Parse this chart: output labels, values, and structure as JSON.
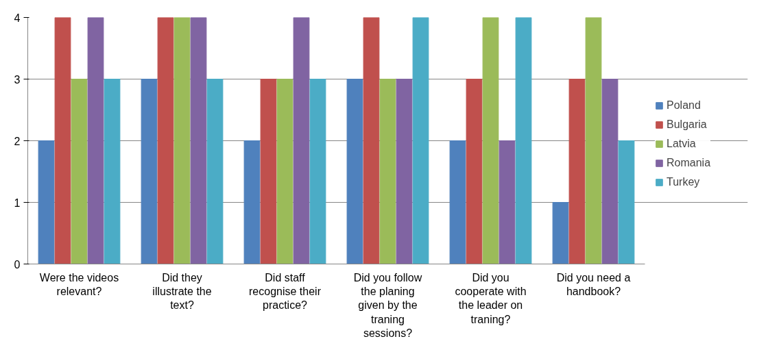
{
  "chart_data": {
    "type": "bar",
    "categories": [
      "Were the videos relevant?",
      "Did they illustrate the text?",
      "Did staff recognise their practice?",
      "Did you follow the planing given by the traning sessions?",
      "Did you cooperate with the leader on traning?",
      "Did you need a handbook?"
    ],
    "series": [
      {
        "name": "Poland",
        "color": "#4f81bd",
        "values": [
          2,
          3,
          2,
          3,
          2,
          1
        ]
      },
      {
        "name": "Bulgaria",
        "color": "#c0504d",
        "values": [
          4,
          4,
          3,
          4,
          3,
          3
        ]
      },
      {
        "name": "Latvia",
        "color": "#9bbb59",
        "values": [
          3,
          4,
          3,
          3,
          4,
          4
        ]
      },
      {
        "name": "Romania",
        "color": "#8064a2",
        "values": [
          4,
          4,
          4,
          3,
          2,
          3
        ]
      },
      {
        "name": "Turkey",
        "color": "#4bacc6",
        "values": [
          3,
          3,
          3,
          4,
          4,
          2
        ]
      }
    ],
    "ylim": [
      0,
      4
    ],
    "yticks": [
      0,
      1,
      2,
      3,
      4
    ],
    "grid": "y",
    "legend": "right"
  }
}
